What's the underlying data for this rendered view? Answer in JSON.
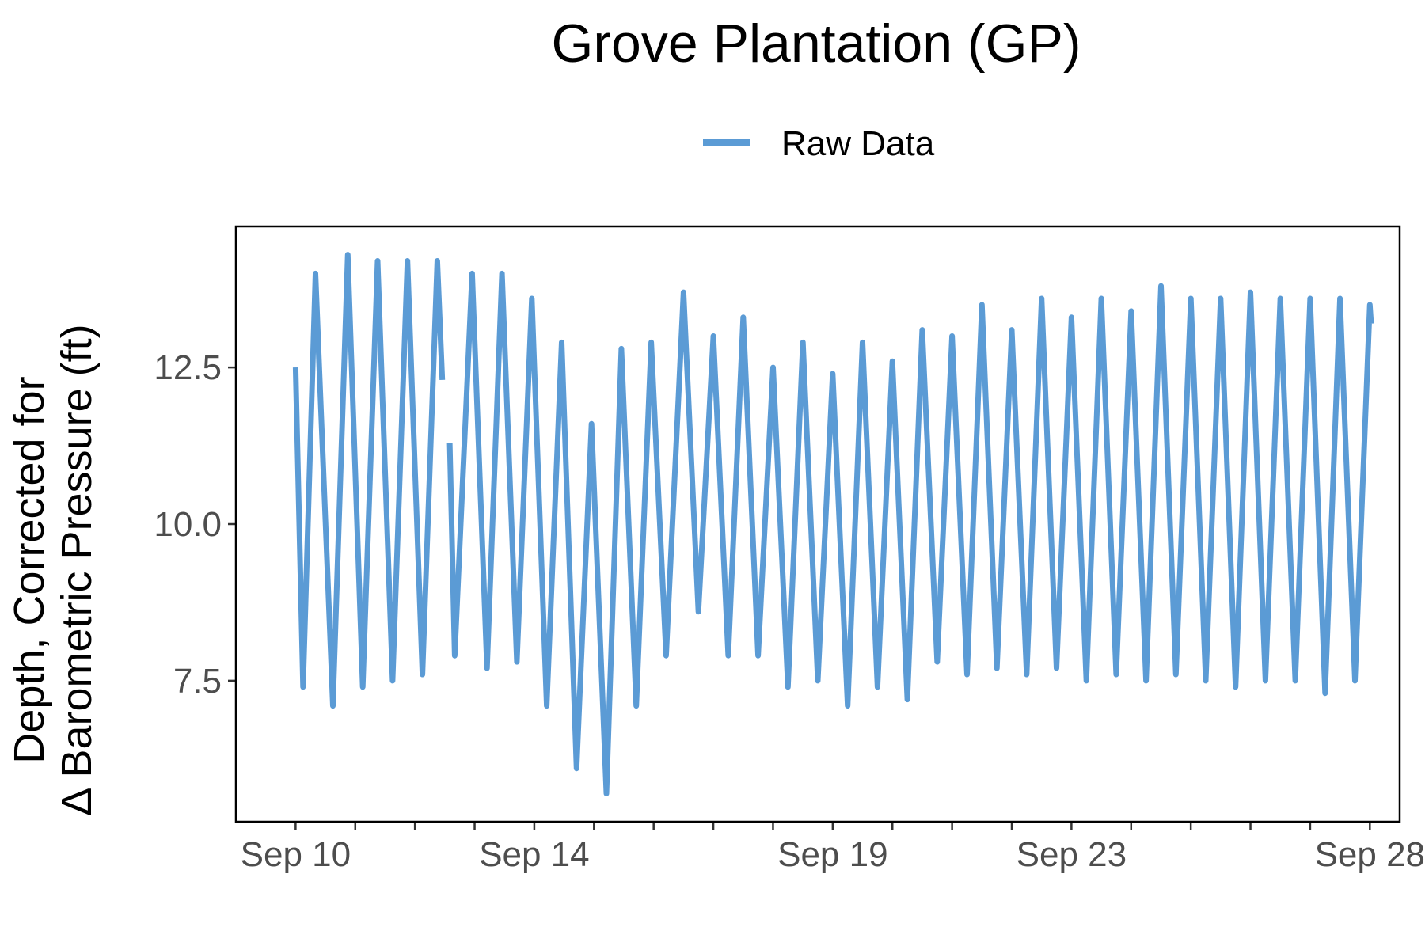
{
  "chart_data": {
    "type": "line",
    "title": "Grove Plantation (GP)",
    "xlabel": "",
    "ylabel_lines": [
      "Depth, Corrected for",
      "Δ Barometric Pressure (ft)"
    ],
    "x_is_date": true,
    "xlim": [
      "Sep 9",
      "Sep 28 12:00"
    ],
    "ylim": [
      5.25,
      14.75
    ],
    "y_ticks": [
      7.5,
      10.0,
      12.5
    ],
    "y_tick_labels": [
      "7.5",
      "10.0",
      "12.5"
    ],
    "x_ticks_labeled": [
      {
        "date": "Sep 10",
        "label": "Sep 10"
      },
      {
        "date": "Sep 14",
        "label": "Sep 14"
      },
      {
        "date": "Sep 19",
        "label": "Sep 19"
      },
      {
        "date": "Sep 23",
        "label": "Sep 23"
      },
      {
        "date": "Sep 28",
        "label": "Sep 28"
      }
    ],
    "x_minor_ticks": [
      "Sep 11",
      "Sep 12",
      "Sep 13",
      "Sep 15",
      "Sep 16",
      "Sep 17",
      "Sep 18",
      "Sep 20",
      "Sep 21",
      "Sep 22",
      "Sep 24",
      "Sep 25",
      "Sep 26",
      "Sep 27"
    ],
    "grid": false,
    "legend": {
      "position": "top",
      "entries": [
        {
          "name": "Raw Data",
          "color": "#5b9bd5"
        }
      ]
    },
    "series": [
      {
        "name": "Raw Data",
        "color": "#5b9bd5",
        "segments": [
          [
            [
              "Sep 10 00:00",
              12.5
            ],
            [
              "Sep 10 03:00",
              7.4
            ],
            [
              "Sep 10 08:00",
              14.0
            ],
            [
              "Sep 10 15:00",
              7.1
            ],
            [
              "Sep 10 21:00",
              14.3
            ],
            [
              "Sep 11 03:00",
              7.4
            ],
            [
              "Sep 11 09:00",
              14.2
            ],
            [
              "Sep 11 15:00",
              7.5
            ],
            [
              "Sep 11 21:00",
              14.2
            ],
            [
              "Sep 12 03:00",
              7.6
            ],
            [
              "Sep 12 09:00",
              14.2
            ],
            [
              "Sep 12 11:00",
              12.3
            ]
          ],
          [
            [
              "Sep 12 14:00",
              11.3
            ],
            [
              "Sep 12 16:00",
              7.9
            ],
            [
              "Sep 12 23:00",
              14.0
            ],
            [
              "Sep 13 05:00",
              7.7
            ],
            [
              "Sep 13 11:00",
              14.0
            ],
            [
              "Sep 13 17:00",
              7.8
            ],
            [
              "Sep 13 23:00",
              13.6
            ],
            [
              "Sep 14 05:00",
              7.1
            ],
            [
              "Sep 14 11:00",
              12.9
            ],
            [
              "Sep 14 17:00",
              6.1
            ],
            [
              "Sep 14 23:00",
              11.6
            ],
            [
              "Sep 15 05:00",
              5.7
            ],
            [
              "Sep 15 11:00",
              12.8
            ],
            [
              "Sep 15 17:00",
              7.1
            ],
            [
              "Sep 15 23:00",
              12.9
            ],
            [
              "Sep 16 05:00",
              7.9
            ],
            [
              "Sep 16 12:00",
              13.7
            ],
            [
              "Sep 16 18:00",
              8.6
            ],
            [
              "Sep 17 00:00",
              13.0
            ],
            [
              "Sep 17 06:00",
              7.9
            ],
            [
              "Sep 17 12:00",
              13.3
            ],
            [
              "Sep 17 18:00",
              7.9
            ],
            [
              "Sep 18 00:00",
              12.5
            ],
            [
              "Sep 18 06:00",
              7.4
            ],
            [
              "Sep 18 12:00",
              12.9
            ],
            [
              "Sep 18 18:00",
              7.5
            ],
            [
              "Sep 19 00:00",
              12.4
            ],
            [
              "Sep 19 06:00",
              7.1
            ],
            [
              "Sep 19 12:00",
              12.9
            ],
            [
              "Sep 19 18:00",
              7.4
            ],
            [
              "Sep 20 00:00",
              12.6
            ],
            [
              "Sep 20 06:00",
              7.2
            ],
            [
              "Sep 20 12:00",
              13.1
            ],
            [
              "Sep 20 18:00",
              7.8
            ],
            [
              "Sep 21 00:00",
              13.0
            ],
            [
              "Sep 21 06:00",
              7.6
            ],
            [
              "Sep 21 12:00",
              13.5
            ],
            [
              "Sep 21 18:00",
              7.7
            ],
            [
              "Sep 22 00:00",
              13.1
            ],
            [
              "Sep 22 06:00",
              7.6
            ],
            [
              "Sep 22 12:00",
              13.6
            ],
            [
              "Sep 22 18:00",
              7.7
            ],
            [
              "Sep 23 00:00",
              13.3
            ],
            [
              "Sep 23 06:00",
              7.5
            ],
            [
              "Sep 23 12:00",
              13.6
            ],
            [
              "Sep 23 18:00",
              7.6
            ],
            [
              "Sep 24 00:00",
              13.4
            ],
            [
              "Sep 24 06:00",
              7.5
            ],
            [
              "Sep 24 12:00",
              13.8
            ],
            [
              "Sep 24 18:00",
              7.6
            ],
            [
              "Sep 25 00:00",
              13.6
            ],
            [
              "Sep 25 06:00",
              7.5
            ],
            [
              "Sep 25 12:00",
              13.6
            ],
            [
              "Sep 25 18:00",
              7.4
            ],
            [
              "Sep 26 00:00",
              13.7
            ],
            [
              "Sep 26 06:00",
              7.5
            ],
            [
              "Sep 26 12:00",
              13.6
            ],
            [
              "Sep 26 18:00",
              7.5
            ],
            [
              "Sep 27 00:00",
              13.6
            ],
            [
              "Sep 27 06:00",
              7.3
            ],
            [
              "Sep 27 12:00",
              13.6
            ],
            [
              "Sep 27 18:00",
              7.5
            ],
            [
              "Sep 28 00:00",
              13.5
            ],
            [
              "Sep 28 00:30",
              13.2
            ]
          ]
        ]
      }
    ]
  }
}
